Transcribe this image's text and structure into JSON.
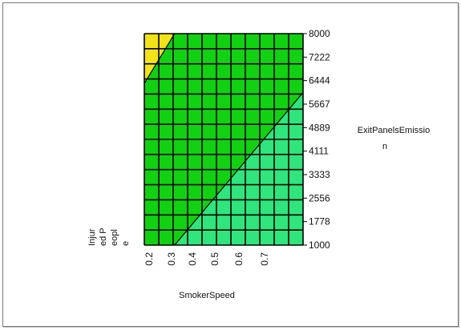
{
  "chart_data": {
    "type": "contour",
    "xlabel": "SmokerSpeed",
    "ylabel": [
      "Injur",
      "ed P",
      "eopl",
      "e"
    ],
    "right_label": [
      "ExitPanelsEmissio",
      "n"
    ],
    "x_ticks": [
      "0.2",
      "0.3",
      "0.4",
      "0.5",
      "0.6",
      "0.7"
    ],
    "y_ticks": [
      "1000",
      "1778",
      "2556",
      "3333",
      "4111",
      "4889",
      "5667",
      "6444",
      "7222",
      "8000"
    ],
    "xlim": [
      0.2,
      0.75
    ],
    "ylim": [
      1000,
      8000
    ],
    "grid_cols": 11,
    "grid_rows": 14,
    "regions": [
      {
        "name": "high",
        "color": "#f2e21a",
        "boundary": [
          [
            0.2,
            6350
          ],
          [
            0.305,
            8000
          ]
        ]
      },
      {
        "name": "mid",
        "color": "#12d012",
        "boundary": [
          [
            0.305,
            1000
          ],
          [
            0.75,
            6050
          ]
        ]
      },
      {
        "name": "low",
        "color": "#2fe57c"
      }
    ],
    "grid_color": "#000000"
  }
}
